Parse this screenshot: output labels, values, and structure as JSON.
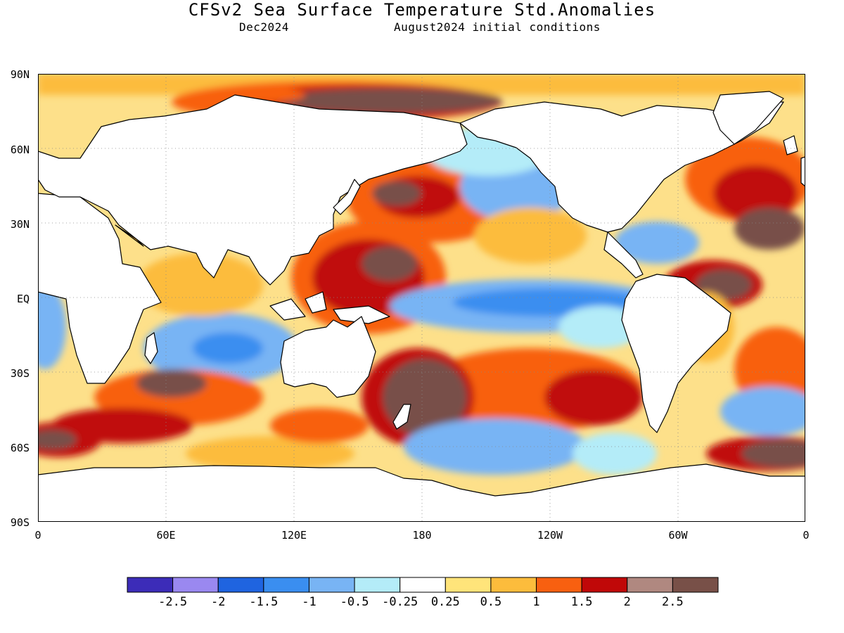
{
  "title": "CFSv2 Sea Surface Temperature Std.Anomalies",
  "subtitle_left": "Dec2024",
  "subtitle_right": "August2024 initial conditions",
  "axes": {
    "y_ticks": [
      "90N",
      "60N",
      "30N",
      "EQ",
      "30S",
      "60S",
      "90S"
    ],
    "x_ticks": [
      "0",
      "60E",
      "120E",
      "180",
      "120W",
      "60W",
      "0"
    ],
    "grid": "dotted"
  },
  "legend": {
    "labels": [
      "-2.5",
      "-2",
      "-1.5",
      "-1",
      "-0.5",
      "-0.25",
      "0.25",
      "0.5",
      "1",
      "1.5",
      "2",
      "2.5"
    ],
    "colors": [
      "#3c2cb8",
      "#9a88f0",
      "#1f64e0",
      "#3a8ef0",
      "#78b4f4",
      "#b4ecf8",
      "#ffffff",
      "#ffe47a",
      "#fcbc3c",
      "#f86010",
      "#c00808",
      "#b08880",
      "#785048"
    ]
  },
  "colors": {
    "land": "#ffffff",
    "coast": "#000000",
    "ocean_base": "#fde08a"
  }
}
